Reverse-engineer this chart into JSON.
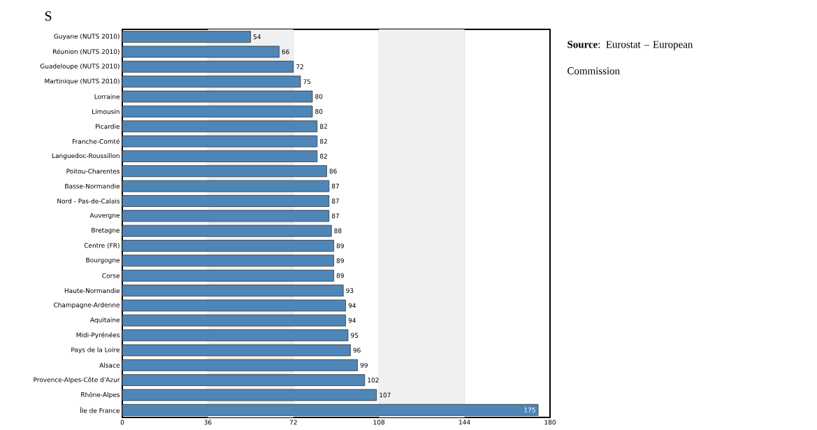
{
  "chart_data": {
    "type": "bar",
    "orientation": "horizontal",
    "title": "S",
    "categories": [
      "Guyane (NUTS 2010)",
      "Réunion (NUTS 2010)",
      "Guadeloupe (NUTS 2010)",
      "Martinique (NUTS 2010)",
      "Lorraine",
      "Limousin",
      "Picardie",
      "Franche-Comté",
      "Languedoc-Roussillon",
      "Poitou-Charentes",
      "Basse-Normandie",
      "Nord - Pas-de-Calais",
      "Auvergne",
      "Bretagne",
      "Centre (FR)",
      "Bourgogne",
      "Corse",
      "Haute-Normandie",
      "Champagne-Ardenne",
      "Aquitaine",
      "Midi-Pyrénées",
      "Pays de la Loire",
      "Alsace",
      "Provence-Alpes-Côte d'Azur",
      "Rhône-Alpes",
      "Île de France"
    ],
    "values": [
      54,
      66,
      72,
      75,
      80,
      80,
      82,
      82,
      82,
      86,
      87,
      87,
      87,
      88,
      89,
      89,
      89,
      93,
      94,
      94,
      95,
      96,
      99,
      102,
      107,
      175
    ],
    "color": "#4f86b8",
    "data_labels": true,
    "xlim": [
      0,
      180
    ],
    "xticks": [
      0,
      36,
      72,
      108,
      144,
      180
    ],
    "grid": "x",
    "bands": [
      {
        "axis": "x",
        "from": 36,
        "to": 72,
        "color": "#f0f0f0"
      },
      {
        "axis": "x",
        "from": 108,
        "to": 144,
        "color": "#f0f0f0"
      }
    ],
    "annotations": [
      "**Source**: Eurostat – European Commission"
    ]
  }
}
